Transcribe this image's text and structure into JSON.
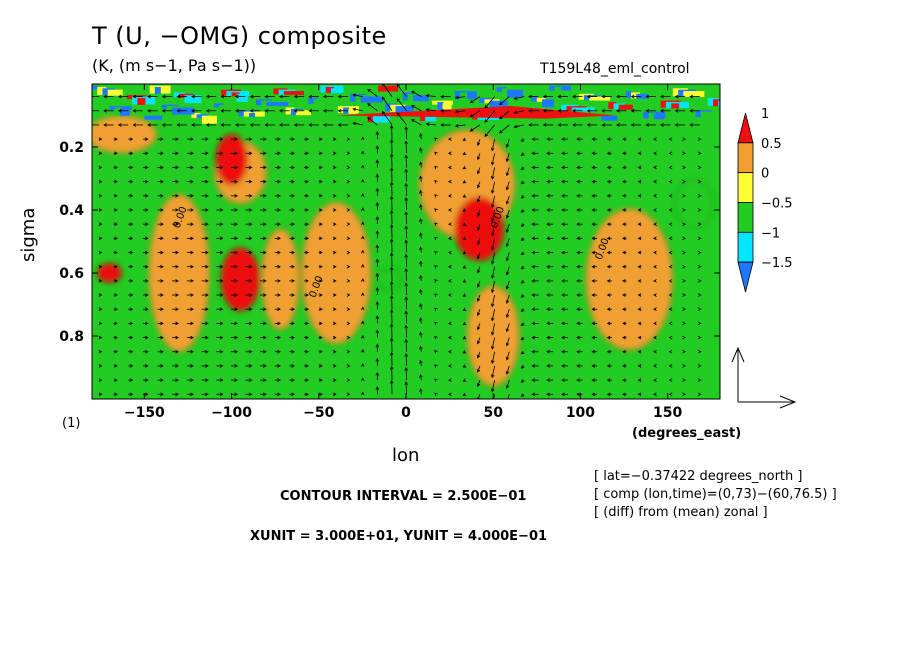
{
  "header": {
    "title": "T (U, −OMG) composite",
    "units": "(K, (m s−1, Pa s−1))",
    "run_name": "T159L48_eml_control",
    "frame_number": "(1)"
  },
  "footer": {
    "contour_interval": "CONTOUR INTERVAL = 2.500E−01",
    "vector_units": "XUNIT = 3.000E+01, YUNIT = 4.000E−01",
    "info_lines": [
      "[ lat=−0.37422 degrees_north ]",
      "[ comp (lon,time)=(0,73)−(60,76.5) ]",
      "[ (diff) from (mean) zonal ]"
    ]
  },
  "chart_data": {
    "type": "heatmap",
    "title": "T (U, −OMG) composite",
    "subtitle": "(K, (m s−1, Pa s−1))",
    "xlabel": "lon",
    "xunit": "(degrees_east)",
    "ylabel": "sigma",
    "xlim": [
      -180,
      180
    ],
    "ylim": [
      1.0,
      0.0
    ],
    "x_ticks": [
      -150,
      -100,
      -50,
      0,
      50,
      100,
      150
    ],
    "x_tick_labels": [
      "−150",
      "−100",
      "−50",
      "0",
      "50",
      "100",
      "150"
    ],
    "y_ticks": [
      0.2,
      0.4,
      0.6,
      0.8
    ],
    "y_tick_labels": [
      "0.2",
      "0.4",
      "0.6",
      "0.8"
    ],
    "colorbar": {
      "levels": [
        -1.5,
        -1,
        -0.5,
        0,
        0.5,
        1
      ],
      "labels": [
        "−1.5",
        "−1",
        "−0.5",
        "0",
        "0.5",
        "1"
      ],
      "colors": [
        "#1e78ff",
        "#00e6ff",
        "#22cc22",
        "#ffff33",
        "#f0a030",
        "#ee1111"
      ]
    },
    "contour_interval": 0.25,
    "vector_reference": {
      "xunit": 30,
      "yunit": 0.4
    },
    "contour_labels": [
      {
        "lon": -130,
        "sigma": 0.46,
        "text": "0.00"
      },
      {
        "lon": -52,
        "sigma": 0.68,
        "text": "0.00"
      },
      {
        "lon": 52,
        "sigma": 0.46,
        "text": "0.00"
      },
      {
        "lon": 112,
        "sigma": 0.56,
        "text": "0.00"
      }
    ],
    "anomaly_regions": [
      {
        "lon": -163,
        "sigma": 0.16,
        "w": 40,
        "h": 0.12,
        "value": 0.25
      },
      {
        "lon": -95,
        "sigma": 0.28,
        "w": 30,
        "h": 0.2,
        "value": 0.25
      },
      {
        "lon": -130,
        "sigma": 0.6,
        "w": 35,
        "h": 0.5,
        "value": 0.25
      },
      {
        "lon": -72,
        "sigma": 0.62,
        "w": 22,
        "h": 0.32,
        "value": 0.25
      },
      {
        "lon": -40,
        "sigma": 0.6,
        "w": 40,
        "h": 0.45,
        "value": 0.25
      },
      {
        "lon": 35,
        "sigma": 0.32,
        "w": 55,
        "h": 0.35,
        "value": 0.25
      },
      {
        "lon": 50,
        "sigma": 0.8,
        "w": 30,
        "h": 0.32,
        "value": 0.25
      },
      {
        "lon": 128,
        "sigma": 0.62,
        "w": 50,
        "h": 0.45,
        "value": 0.25
      },
      {
        "lon": -100,
        "sigma": 0.24,
        "w": 18,
        "h": 0.16,
        "value": 0.6
      },
      {
        "lon": -95,
        "sigma": 0.62,
        "w": 22,
        "h": 0.2,
        "value": 0.6
      },
      {
        "lon": -170,
        "sigma": 0.6,
        "w": 14,
        "h": 0.06,
        "value": 0.6
      },
      {
        "lon": 42,
        "sigma": 0.46,
        "w": 28,
        "h": 0.2,
        "value": 0.6
      },
      {
        "lon": -10,
        "sigma": 0.62,
        "w": 15,
        "h": 0.06,
        "value": -0.75
      },
      {
        "lon": 165,
        "sigma": 0.38,
        "w": 22,
        "h": 0.15,
        "value": -0.75
      }
    ]
  }
}
